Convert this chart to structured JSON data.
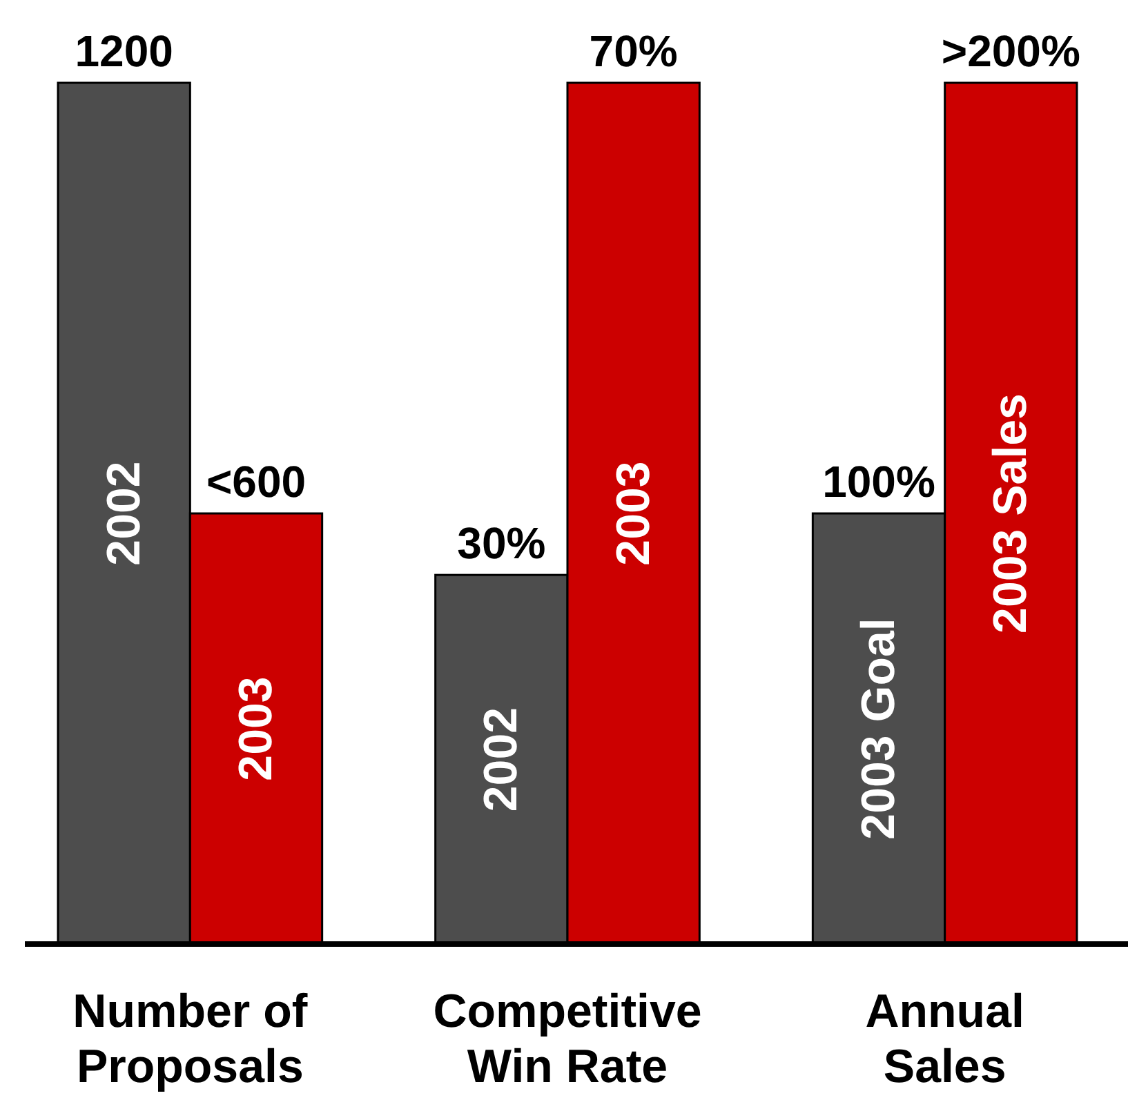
{
  "chart_data": [
    {
      "type": "bar",
      "xlabel": "Number of\nProposals",
      "categories": [
        "2002",
        "2003"
      ],
      "values": [
        1200,
        600
      ],
      "colors": [
        "#4d4d4d",
        "#cc0000"
      ],
      "value_labels": [
        "1200",
        "<600"
      ],
      "ylim": [
        0,
        1200
      ]
    },
    {
      "type": "bar",
      "xlabel": "Competitive\nWin Rate",
      "categories": [
        "2002",
        "2003"
      ],
      "values": [
        30,
        70
      ],
      "colors": [
        "#4d4d4d",
        "#cc0000"
      ],
      "value_labels": [
        "30%",
        "70%"
      ],
      "ylim": [
        0,
        70
      ]
    },
    {
      "type": "bar",
      "xlabel": "Annual\nSales",
      "categories": [
        "2003 Goal",
        "2003 Sales"
      ],
      "values": [
        100,
        200
      ],
      "colors": [
        "#4d4d4d",
        "#cc0000"
      ],
      "value_labels": [
        "100%",
        ">200%"
      ],
      "ylim": [
        0,
        200
      ]
    }
  ]
}
